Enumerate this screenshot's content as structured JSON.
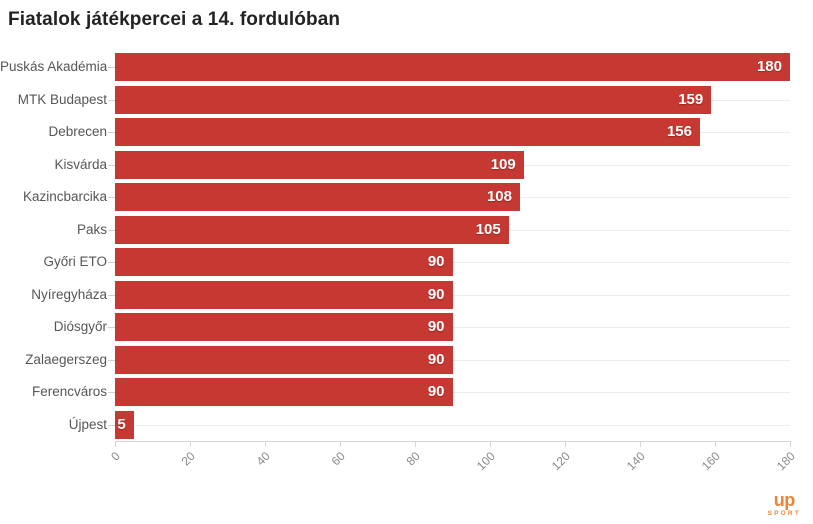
{
  "title": "Fiatalok játékpercei a 14. fordulóban",
  "chart_data": {
    "type": "bar",
    "orientation": "horizontal",
    "title": "Fiatalok játékpercei a 14. fordulóban",
    "categories": [
      "Puskás Akadémia",
      "MTK Budapest",
      "Debrecen",
      "Kisvárda",
      "Kazincbarcika",
      "Paks",
      "Győri ETO",
      "Nyíregyháza",
      "Diósgyőr",
      "Zalaegerszeg",
      "Ferencváros",
      "Újpest"
    ],
    "values": [
      180,
      159,
      156,
      109,
      108,
      105,
      90,
      90,
      90,
      90,
      90,
      5
    ],
    "xlabel": "",
    "ylabel": "",
    "xlim": [
      0,
      180
    ],
    "xticks": [
      0,
      20,
      40,
      60,
      80,
      100,
      120,
      140,
      160,
      180
    ],
    "grid": "horizontal-row-lines-only",
    "value_labels": "inside-bar-end",
    "colors": {
      "bar": "#c53932",
      "value_label": "#ffffff",
      "category_label": "#565656",
      "tick_label": "#8a8a8a",
      "gridline": "#ededed",
      "axis_line": "#d6d6d6",
      "title": "#232323"
    }
  },
  "logo": {
    "text": "up",
    "subtext": "SPORT",
    "color": "#ee8534"
  }
}
